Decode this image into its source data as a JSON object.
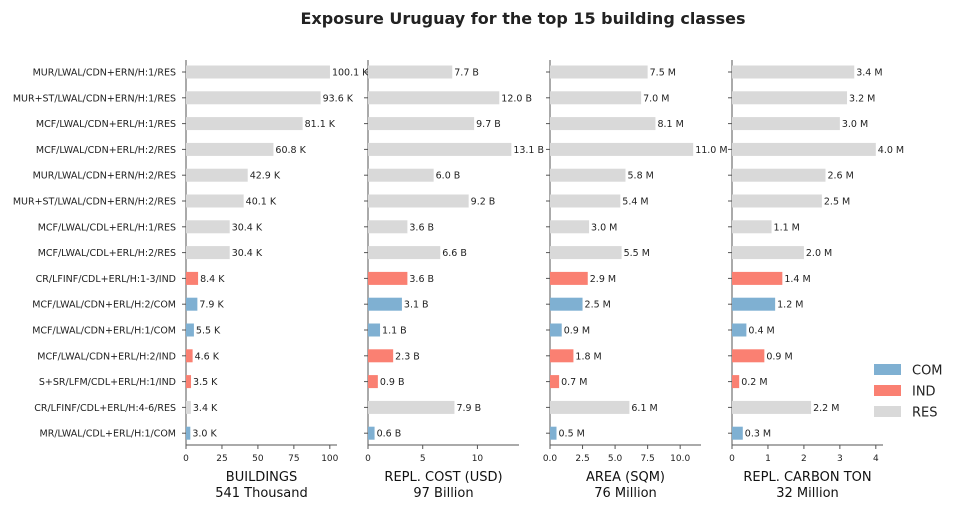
{
  "chart_data": {
    "type": "bar",
    "title": "Exposure Uruguay for the top 15 building classes",
    "categories": [
      "MUR/LWAL/CDN+ERN/H:1/RES",
      "MUR+ST/LWAL/CDN+ERN/H:1/RES",
      "MCF/LWAL/CDN+ERL/H:1/RES",
      "MCF/LWAL/CDN+ERL/H:2/RES",
      "MUR/LWAL/CDN+ERN/H:2/RES",
      "MUR+ST/LWAL/CDN+ERN/H:2/RES",
      "MCF/LWAL/CDL+ERL/H:1/RES",
      "MCF/LWAL/CDL+ERL/H:2/RES",
      "CR/LFINF/CDL+ERL/H:1-3/IND",
      "MCF/LWAL/CDN+ERL/H:2/COM",
      "MCF/LWAL/CDN+ERL/H:1/COM",
      "MCF/LWAL/CDN+ERL/H:2/IND",
      "S+SR/LFM/CDL+ERL/H:1/IND",
      "CR/LFINF/CDL+ERL/H:4-6/RES",
      "MR/LWAL/CDL+ERL/H:1/COM"
    ],
    "occupancy": [
      "RES",
      "RES",
      "RES",
      "RES",
      "RES",
      "RES",
      "RES",
      "RES",
      "IND",
      "COM",
      "COM",
      "IND",
      "IND",
      "RES",
      "COM"
    ],
    "colors": {
      "COM": "#7fb0d2",
      "IND": "#fa8072",
      "RES": "#d9d9d9"
    },
    "legend": {
      "position": "lower-right",
      "entries": [
        "COM",
        "IND",
        "RES"
      ]
    },
    "grid": false,
    "panels": [
      {
        "xlabel": "BUILDINGS",
        "total": "541 Thousand",
        "xlim": [
          0,
          105
        ],
        "ticks": [
          0,
          25,
          50,
          75,
          100
        ],
        "values": [
          100.1,
          93.6,
          81.1,
          60.8,
          42.9,
          40.1,
          30.4,
          30.4,
          8.4,
          7.9,
          5.5,
          4.6,
          3.5,
          3.4,
          3.0
        ],
        "labels": [
          "100.1 K",
          "93.6 K",
          "81.1 K",
          "60.8 K",
          "42.9 K",
          "40.1 K",
          "30.4 K",
          "30.4 K",
          "8.4 K",
          "7.9 K",
          "5.5 K",
          "4.6 K",
          "3.5 K",
          "3.4 K",
          "3.0 K"
        ]
      },
      {
        "xlabel": "REPL. COST (USD)",
        "total": "97 Billion",
        "xlim": [
          0,
          13.8
        ],
        "ticks": [
          0,
          5,
          10
        ],
        "values": [
          7.7,
          12.0,
          9.7,
          13.1,
          6.0,
          9.2,
          3.6,
          6.6,
          3.6,
          3.1,
          1.1,
          2.3,
          0.9,
          7.9,
          0.6
        ],
        "labels": [
          "7.7 B",
          "12.0 B",
          "9.7 B",
          "13.1 B",
          "6.0 B",
          "9.2 B",
          "3.6 B",
          "6.6 B",
          "3.6 B",
          "3.1 B",
          "1.1 B",
          "2.3 B",
          "0.9 B",
          "7.9 B",
          "0.6 B"
        ]
      },
      {
        "xlabel": "AREA (SQM)",
        "total": "76 Million",
        "xlim": [
          0,
          11.6
        ],
        "ticks": [
          0.0,
          2.5,
          5.0,
          7.5,
          10.0
        ],
        "tick_labels": [
          "0.0",
          "2.5",
          "5.0",
          "7.5",
          "10.0"
        ],
        "values": [
          7.5,
          7.0,
          8.1,
          11.0,
          5.8,
          5.4,
          3.0,
          5.5,
          2.9,
          2.5,
          0.9,
          1.8,
          0.7,
          6.1,
          0.5
        ],
        "labels": [
          "7.5 M",
          "7.0 M",
          "8.1 M",
          "11.0 M",
          "5.8 M",
          "5.4 M",
          "3.0 M",
          "5.5 M",
          "2.9 M",
          "2.5 M",
          "0.9 M",
          "1.8 M",
          "0.7 M",
          "6.1 M",
          "0.5 M"
        ]
      },
      {
        "xlabel": "REPL. CARBON TON",
        "total": "32 Million",
        "xlim": [
          0,
          4.2
        ],
        "ticks": [
          0,
          1,
          2,
          3,
          4
        ],
        "values": [
          3.4,
          3.2,
          3.0,
          4.0,
          2.6,
          2.5,
          1.1,
          2.0,
          1.4,
          1.2,
          0.4,
          0.9,
          0.2,
          2.2,
          0.3
        ],
        "labels": [
          "3.4 M",
          "3.2 M",
          "3.0 M",
          "4.0 M",
          "2.6 M",
          "2.5 M",
          "1.1 M",
          "2.0 M",
          "1.4 M",
          "1.2 M",
          "0.4 M",
          "0.9 M",
          "0.2 M",
          "2.2 M",
          "0.3 M"
        ]
      }
    ]
  }
}
